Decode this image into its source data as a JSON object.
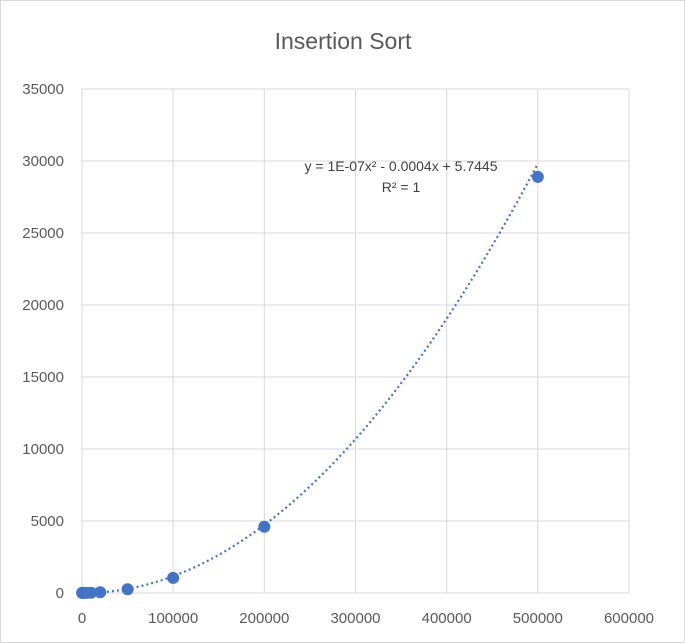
{
  "chart_data": {
    "type": "scatter",
    "title": "Insertion Sort",
    "xlim": [
      0,
      600000
    ],
    "ylim": [
      0,
      35000
    ],
    "x_ticks": [
      0,
      100000,
      200000,
      300000,
      400000,
      500000,
      600000
    ],
    "y_ticks": [
      0,
      5000,
      10000,
      15000,
      20000,
      25000,
      30000,
      35000
    ],
    "grid": true,
    "legend": "none",
    "series": [
      {
        "color": "#4472c4",
        "points": [
          {
            "x": 100,
            "y": 5.7
          },
          {
            "x": 500,
            "y": 5.6
          },
          {
            "x": 1000,
            "y": 5.5
          },
          {
            "x": 2000,
            "y": 5.3
          },
          {
            "x": 5000,
            "y": 6.2
          },
          {
            "x": 10000,
            "y": 15
          },
          {
            "x": 20000,
            "y": 50
          },
          {
            "x": 50000,
            "y": 260
          },
          {
            "x": 100000,
            "y": 1050
          },
          {
            "x": 200000,
            "y": 4600
          },
          {
            "x": 500000,
            "y": 28900
          }
        ]
      }
    ],
    "trendline": {
      "type": "polynomial",
      "color": "#4472c4",
      "coefficients": {
        "a": 1.2e-07,
        "b": -0.0004,
        "c": 5.7445
      },
      "equation_text": "y = 1E-07x² - 0.0004x + 5.7445",
      "r2_text": "R² = 1"
    }
  }
}
